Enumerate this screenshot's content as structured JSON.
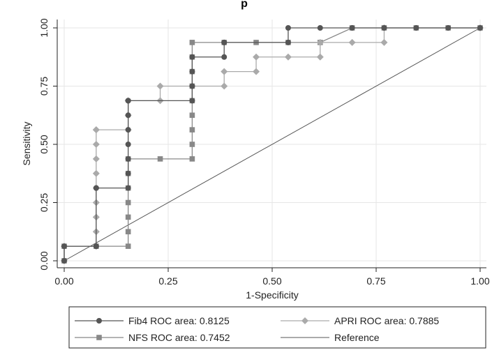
{
  "chart_data": {
    "type": "line",
    "title": "p",
    "xlabel": "1-Specificity",
    "ylabel": "Sensitivity",
    "xlim": [
      0,
      1
    ],
    "ylim": [
      0,
      1
    ],
    "x_ticks": [
      "0.00",
      "0.25",
      "0.50",
      "0.75",
      "1.00"
    ],
    "y_ticks": [
      "0.00",
      "0.25",
      "0.50",
      "0.75",
      "1.00"
    ],
    "grid": true,
    "legend_placement": "bottom",
    "series": [
      {
        "name": "Fib4 ROC area: 0.8125",
        "marker": "circle",
        "color": "#555555",
        "x": [
          0,
          0,
          0.0769,
          0.0769,
          0.0769,
          0.0769,
          0.1538,
          0.1538,
          0.1538,
          0.1538,
          0.1538,
          0.1538,
          0.1538,
          0.1538,
          0.1538,
          0.3077,
          0.3077,
          0.3077,
          0.3077,
          0.3846,
          0.3846,
          0.3846,
          0.5385,
          0.5385,
          0.6154,
          0.6923,
          0.7692,
          0.8462,
          0.9231,
          1
        ],
        "y": [
          0,
          0.0625,
          0.0625,
          0.0625,
          0.3125,
          0.3125,
          0.3125,
          0.375,
          0.4375,
          0.5,
          0.5625,
          0.625,
          0.6875,
          0.6875,
          0.6875,
          0.6875,
          0.75,
          0.8125,
          0.875,
          0.875,
          0.9375,
          0.9375,
          0.9375,
          1,
          1,
          1,
          1,
          1,
          1,
          1
        ]
      },
      {
        "name": "APRI ROC area: 0.7885",
        "marker": "diamond",
        "color": "#aaaaaa",
        "x": [
          0,
          0,
          0.0769,
          0.0769,
          0.0769,
          0.0769,
          0.0769,
          0.0769,
          0.0769,
          0.0769,
          0.0769,
          0.0769,
          0.1538,
          0.1538,
          0.1538,
          0.2308,
          0.2308,
          0.3077,
          0.3077,
          0.3846,
          0.3846,
          0.4615,
          0.4615,
          0.5385,
          0.6154,
          0.6154,
          0.6923,
          0.7692,
          0.7692,
          1
        ],
        "y": [
          0,
          0.0625,
          0.0625,
          0.125,
          0.1875,
          0.25,
          0.3125,
          0.375,
          0.4375,
          0.5,
          0.5625,
          0.5625,
          0.5625,
          0.625,
          0.6875,
          0.6875,
          0.75,
          0.75,
          0.75,
          0.75,
          0.8125,
          0.8125,
          0.875,
          0.875,
          0.875,
          0.9375,
          0.9375,
          0.9375,
          1,
          1
        ]
      },
      {
        "name": "NFS ROC area: 0.7452",
        "marker": "square",
        "color": "#888888",
        "x": [
          0,
          0,
          0.0769,
          0.1538,
          0.1538,
          0.1538,
          0.1538,
          0.1538,
          0.1538,
          0.1538,
          0.2308,
          0.3077,
          0.3077,
          0.3077,
          0.3077,
          0.3077,
          0.3077,
          0.3077,
          0.3077,
          0.3077,
          0.3846,
          0.4615,
          0.5385,
          0.6154,
          0.6923,
          0.7692,
          0.8462,
          0.9231,
          1
        ],
        "y": [
          0,
          0.0625,
          0.0625,
          0.0625,
          0.125,
          0.1875,
          0.25,
          0.3125,
          0.375,
          0.4375,
          0.4375,
          0.4375,
          0.5,
          0.5625,
          0.625,
          0.6875,
          0.75,
          0.8125,
          0.875,
          0.9375,
          0.9375,
          0.9375,
          0.9375,
          0.9375,
          1,
          1,
          1,
          1,
          1
        ]
      },
      {
        "name": "Reference",
        "marker": "none",
        "color": "#555555",
        "x": [
          0,
          1
        ],
        "y": [
          0,
          1
        ]
      }
    ],
    "colors": {
      "outer_background": "#ffffff",
      "plot_background": "#ffffff",
      "grid": "#e6e6e6",
      "axis": "#222222"
    }
  }
}
